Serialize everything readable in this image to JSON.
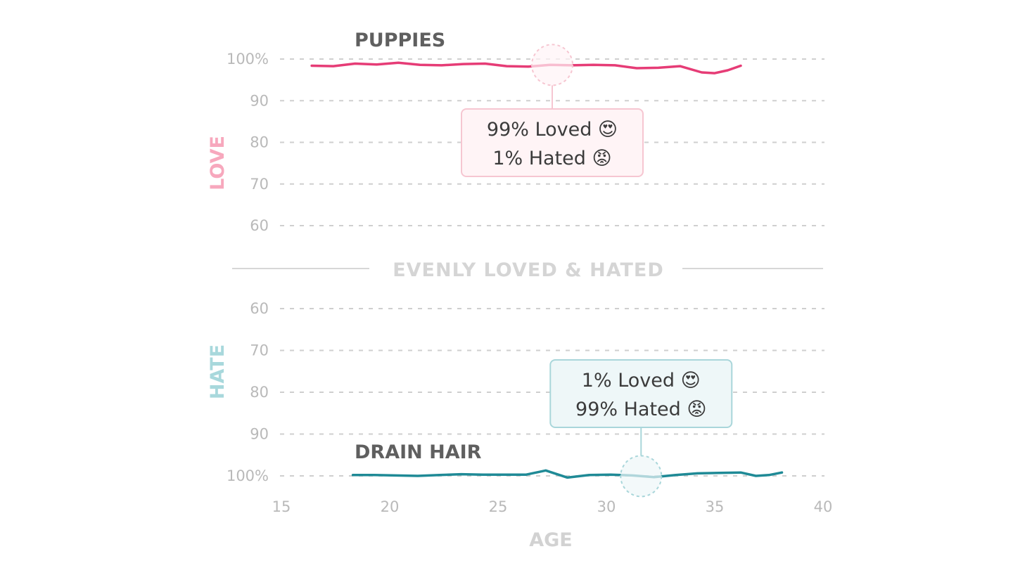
{
  "chart_data": {
    "type": "line",
    "divider_label": "EVENLY LOVED & HATED",
    "x": {
      "label": "AGE",
      "ticks": [
        15,
        20,
        25,
        30,
        35,
        40
      ],
      "range": [
        15,
        40
      ]
    },
    "love_axis": {
      "label": "LOVE",
      "ticks": [
        "100%",
        "90",
        "80",
        "70",
        "60"
      ],
      "tick_values": [
        100,
        90,
        80,
        70,
        60
      ],
      "range": [
        60,
        100
      ],
      "color": "#f7a8bd"
    },
    "hate_axis": {
      "label": "HATE",
      "ticks": [
        "60",
        "70",
        "80",
        "90",
        "100%"
      ],
      "tick_values": [
        60,
        70,
        80,
        90,
        100
      ],
      "range": [
        60,
        100
      ],
      "color": "#a8d8dc"
    },
    "series": [
      {
        "name": "PUPPIES",
        "axis": "love",
        "color": "#e63c76",
        "points": [
          [
            16.4,
            98.4
          ],
          [
            17.4,
            98.3
          ],
          [
            18.4,
            98.9
          ],
          [
            19.4,
            98.7
          ],
          [
            20.4,
            99.1
          ],
          [
            21.4,
            98.6
          ],
          [
            22.4,
            98.5
          ],
          [
            23.4,
            98.8
          ],
          [
            24.4,
            98.9
          ],
          [
            25.4,
            98.3
          ],
          [
            26.4,
            98.2
          ],
          [
            27.4,
            98.6
          ],
          [
            28.4,
            98.5
          ],
          [
            29.4,
            98.6
          ],
          [
            30.4,
            98.5
          ],
          [
            31.4,
            97.8
          ],
          [
            32.4,
            97.9
          ],
          [
            33.4,
            98.3
          ],
          [
            34.4,
            96.8
          ],
          [
            35.0,
            96.6
          ],
          [
            35.6,
            97.3
          ],
          [
            36.2,
            98.4
          ]
        ],
        "tooltip": {
          "x": 27.5,
          "lines": [
            {
              "text": "99% Loved",
              "emoji": "😍"
            },
            {
              "text": "1% Hated",
              "emoji": "😡"
            }
          ],
          "fill": "#fff4f6",
          "border": "#f6c6d1"
        }
      },
      {
        "name": "DRAIN HAIR",
        "axis": "hate",
        "color": "#1f8a96",
        "points": [
          [
            18.3,
            99.8
          ],
          [
            19.3,
            99.8
          ],
          [
            20.3,
            99.9
          ],
          [
            21.3,
            100.0
          ],
          [
            22.3,
            99.8
          ],
          [
            23.3,
            99.6
          ],
          [
            24.3,
            99.7
          ],
          [
            25.3,
            99.7
          ],
          [
            26.3,
            99.7
          ],
          [
            27.2,
            98.7
          ],
          [
            28.2,
            100.4
          ],
          [
            29.2,
            99.8
          ],
          [
            30.2,
            99.7
          ],
          [
            31.2,
            99.9
          ],
          [
            32.2,
            100.3
          ],
          [
            33.2,
            99.8
          ],
          [
            34.2,
            99.4
          ],
          [
            35.2,
            99.3
          ],
          [
            36.2,
            99.2
          ],
          [
            36.9,
            100.0
          ],
          [
            37.5,
            99.8
          ],
          [
            38.1,
            99.2
          ]
        ],
        "tooltip": {
          "x": 31.6,
          "lines": [
            {
              "text": "1% Loved",
              "emoji": "😍"
            },
            {
              "text": "99% Hated",
              "emoji": "😡"
            }
          ],
          "fill": "#eef7f8",
          "border": "#a9d6da"
        }
      }
    ]
  }
}
